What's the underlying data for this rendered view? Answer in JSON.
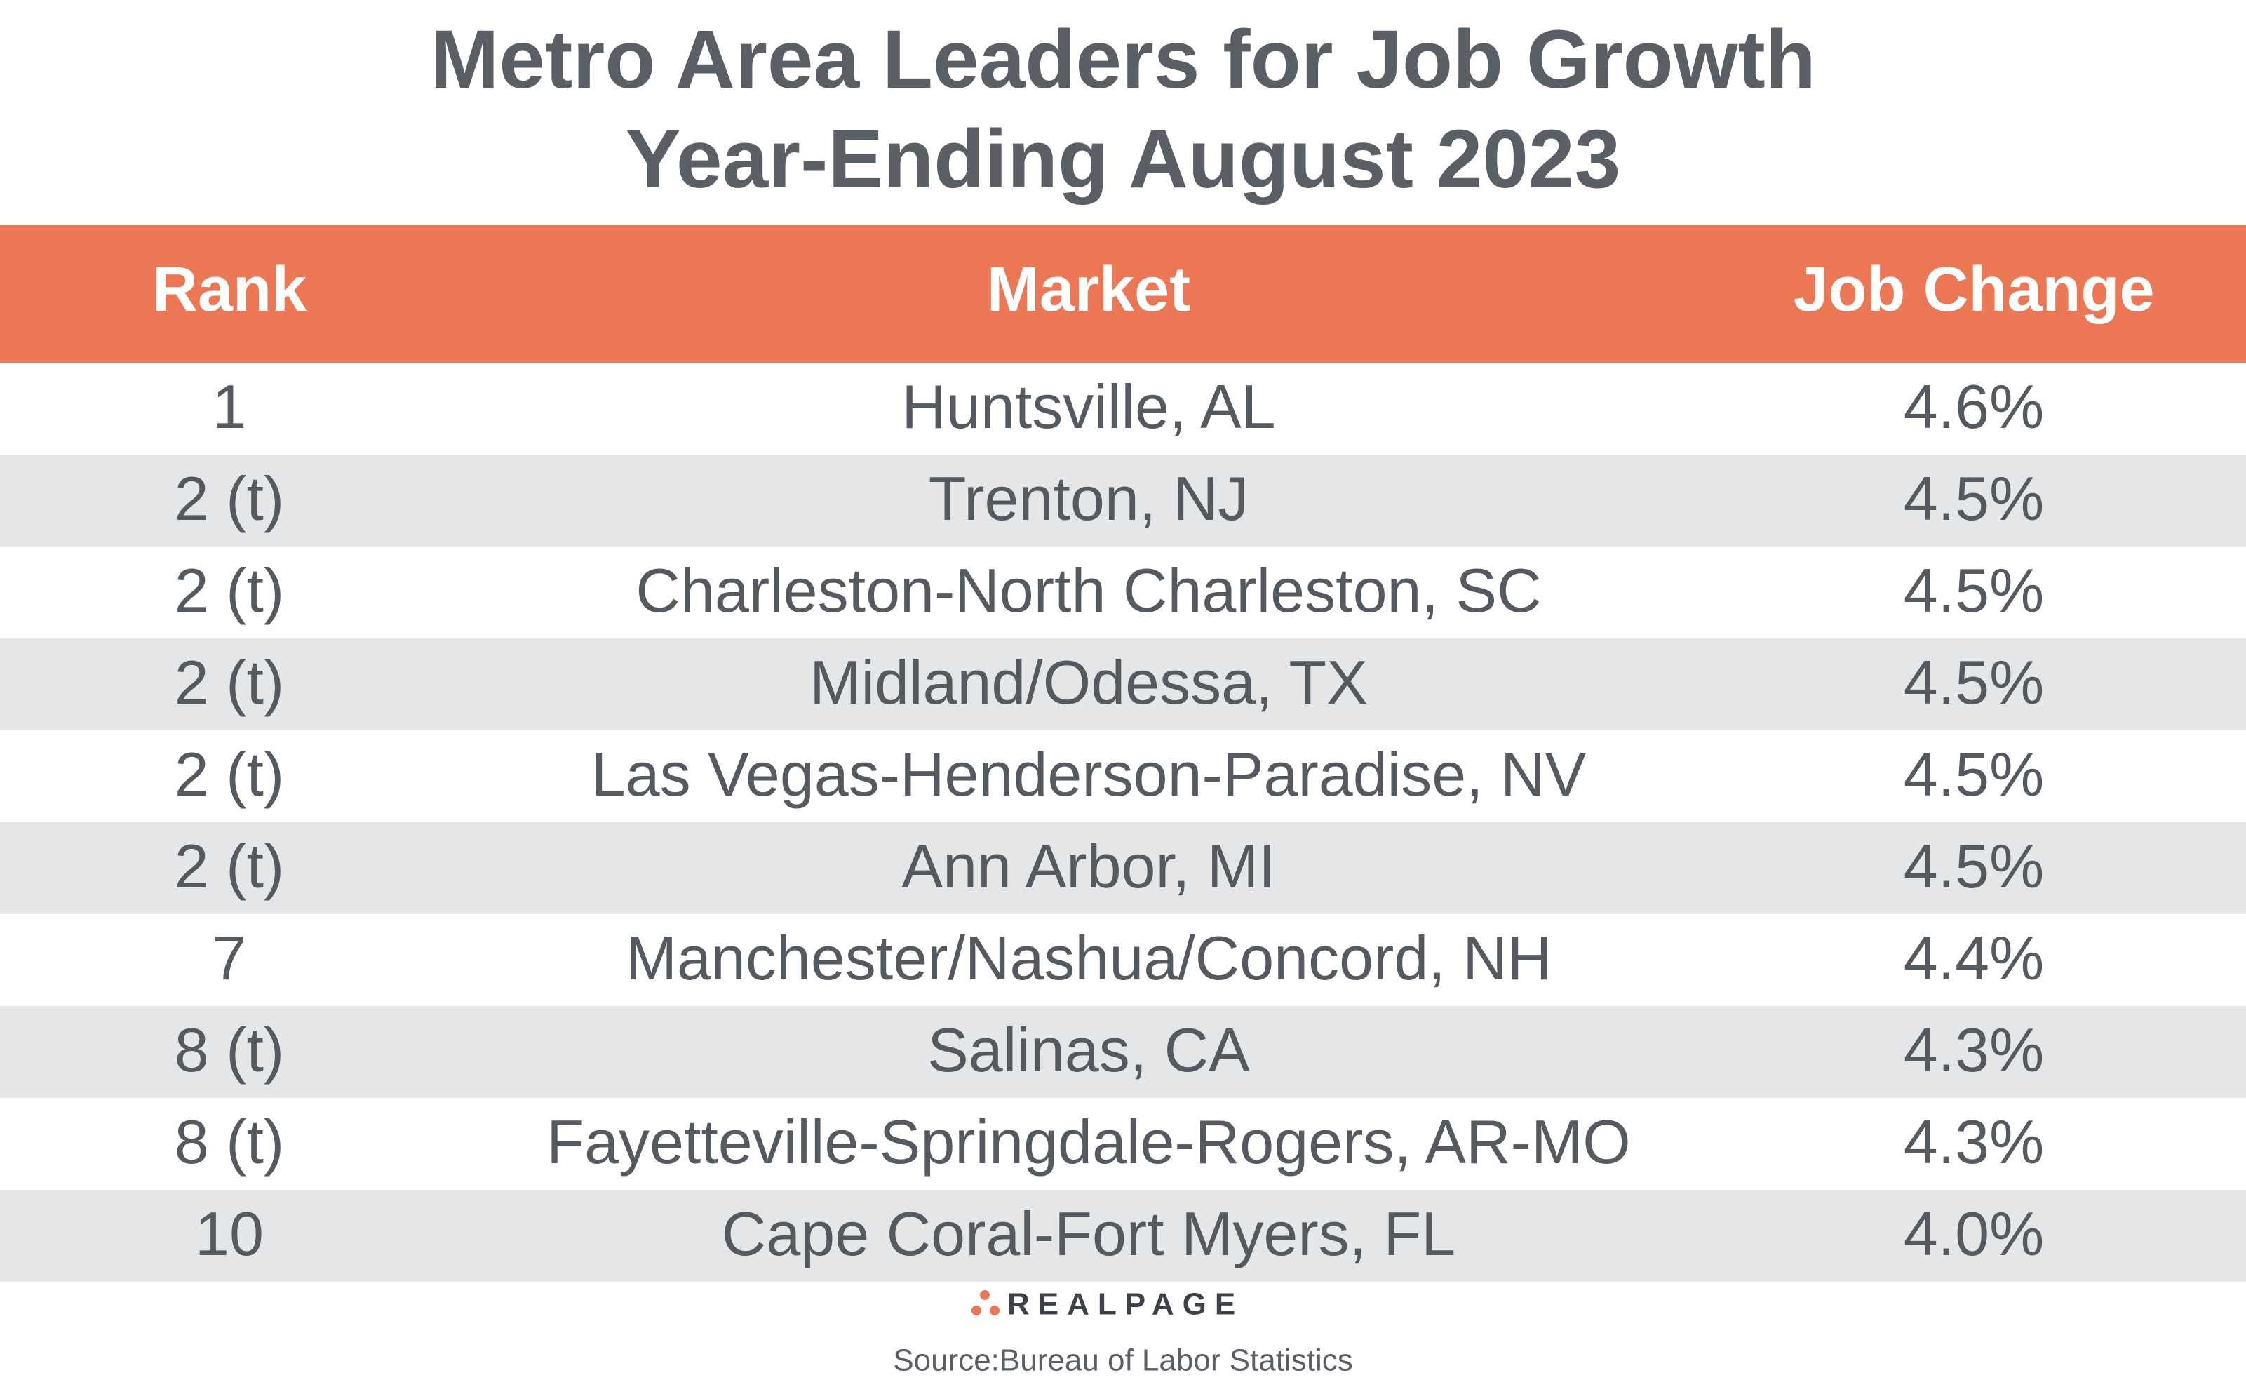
{
  "header": {
    "title_lines": [
      "Metro Area Leaders for Job Growth",
      "Year-Ending August 2023"
    ]
  },
  "table": {
    "columns": [
      "Rank",
      "Market",
      "Job Change"
    ],
    "rows": [
      [
        "1",
        "Huntsville, AL",
        "4.6%"
      ],
      [
        "2 (t)",
        "Trenton, NJ",
        "4.5%"
      ],
      [
        "2 (t)",
        "Charleston-North Charleston, SC",
        "4.5%"
      ],
      [
        "2 (t)",
        "Midland/Odessa, TX",
        "4.5%"
      ],
      [
        "2 (t)",
        "Las Vegas-Henderson-Paradise, NV",
        "4.5%"
      ],
      [
        "2 (t)",
        "Ann Arbor, MI",
        "4.5%"
      ],
      [
        "7",
        "Manchester/Nashua/Concord, NH",
        "4.4%"
      ],
      [
        "8 (t)",
        "Salinas, CA",
        "4.3%"
      ],
      [
        "8 (t)",
        "Fayetteville-Springdale-Rogers, AR-MO",
        "4.3%"
      ],
      [
        "10",
        "Cape Coral-Fort Myers, FL",
        "4.0%"
      ]
    ]
  },
  "footer": {
    "logo": "REALPAGE",
    "source": "Source:Bureau of Labor Statistics"
  }
}
